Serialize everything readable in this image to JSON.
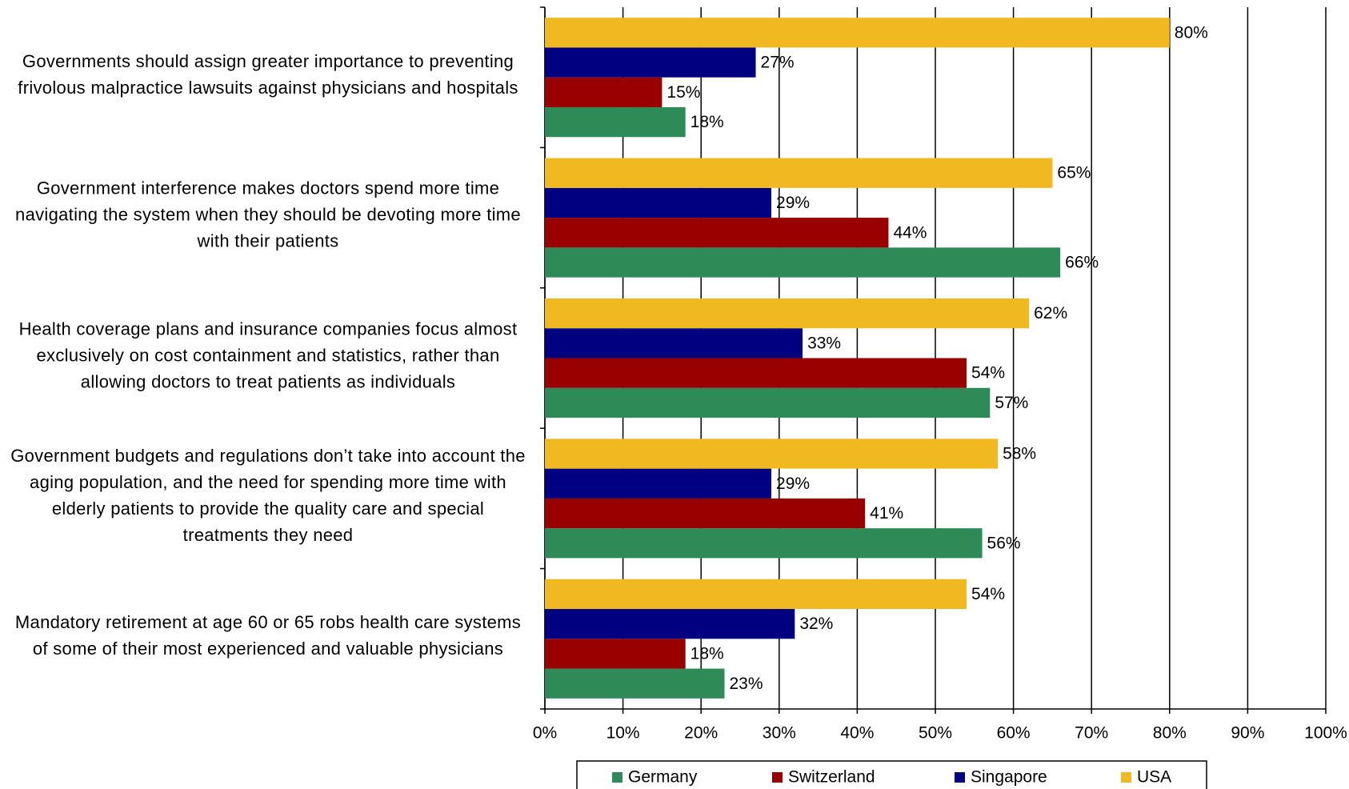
{
  "chart_data": {
    "type": "bar",
    "orientation": "horizontal",
    "categories": [
      "Governments should assign greater importance to preventing frivolous malpractice lawsuits against physicians and hospitals",
      "Government interference makes doctors spend more time navigating the system when they should be devoting more time with their patients",
      "Health coverage plans and insurance companies focus almost exclusively on cost containment and statistics, rather than allowing doctors to treat patients as individuals",
      "Government budgets and regulations don’t take into account the aging population, and the need for spending more time with elderly patients to provide the quality care and special treatments they need",
      "Mandatory retirement at age 60 or 65 robs health care systems of some of their most experienced and valuable physicians"
    ],
    "series": [
      {
        "name": "Germany",
        "color": "#2e8b57",
        "values": [
          18,
          66,
          57,
          56,
          23
        ],
        "value_labels": [
          "18%",
          "66%",
          "57%",
          "56%",
          "23%"
        ]
      },
      {
        "name": "Switzerland",
        "color": "#990000",
        "values": [
          15,
          44,
          54,
          41,
          18
        ],
        "value_labels": [
          "15%",
          "44%",
          "54%",
          "41%",
          "18%"
        ]
      },
      {
        "name": "Singapore",
        "color": "#000080",
        "values": [
          27,
          29,
          33,
          29,
          32
        ],
        "value_labels": [
          "27%",
          "29%",
          "33%",
          "29%",
          "32%"
        ]
      },
      {
        "name": "USA",
        "color": "#f0b921",
        "values": [
          80,
          65,
          62,
          58,
          54
        ],
        "value_labels": [
          "80%",
          "65%",
          "62%",
          "58%",
          "54%"
        ]
      }
    ],
    "xlim": [
      0,
      100
    ],
    "xticks": [
      {
        "value": 0,
        "label": "0%"
      },
      {
        "value": 10,
        "label": "10%"
      },
      {
        "value": 20,
        "label": "20%"
      },
      {
        "value": 30,
        "label": "30%"
      },
      {
        "value": 40,
        "label": "40%"
      },
      {
        "value": 50,
        "label": "50%"
      },
      {
        "value": 60,
        "label": "60%"
      },
      {
        "value": 70,
        "label": "70%"
      },
      {
        "value": 80,
        "label": "80%"
      },
      {
        "value": 90,
        "label": "90%"
      },
      {
        "value": 100,
        "label": "100%"
      }
    ],
    "grid": true,
    "legend": "bottom"
  }
}
